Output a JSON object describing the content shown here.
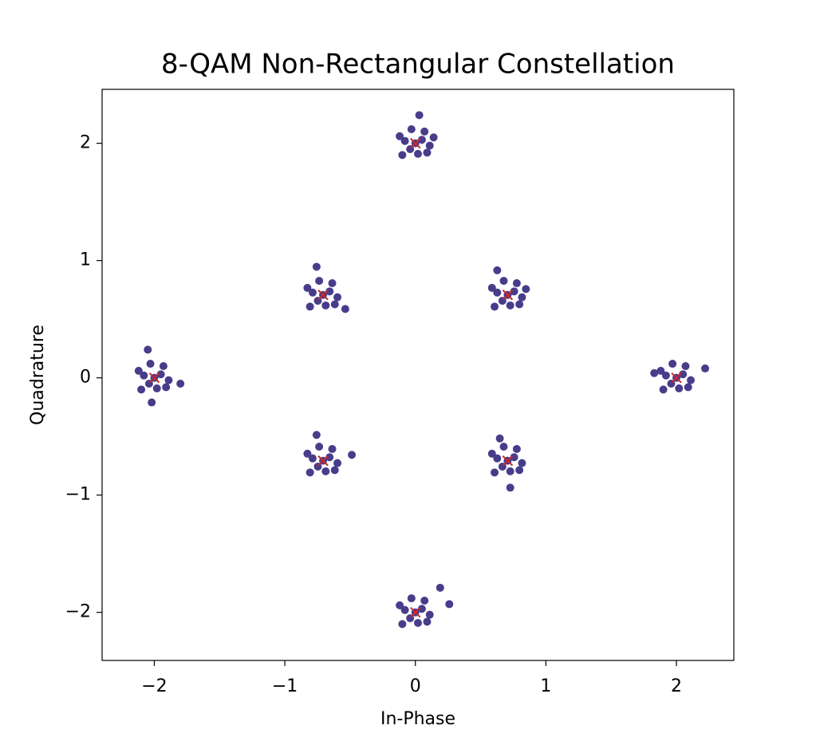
{
  "chart_data": {
    "type": "scatter",
    "title": "8-QAM Non-Rectangular Constellation",
    "x_label": "In-Phase",
    "y_label": "Quadrature",
    "xlim": [
      -2.4,
      2.44
    ],
    "ylim": [
      -2.41,
      2.46
    ],
    "xticks": [
      {
        "value": -2,
        "label": "−2"
      },
      {
        "value": -1,
        "label": "−1"
      },
      0,
      1,
      2
    ],
    "yticks": [
      {
        "value": -2,
        "label": "−2"
      },
      {
        "value": -1,
        "label": "−1"
      },
      0,
      1,
      2
    ],
    "grid": false,
    "series": [
      {
        "color": "#483d8b",
        "marker": "circle",
        "x": [
          -1.95,
          -2.08,
          -1.98,
          -2.04,
          -1.89,
          -2.12,
          -1.93,
          -2.0,
          -2.03,
          -1.91,
          -2.1,
          -1.8,
          -2.05,
          -2.02,
          0.05,
          -0.08,
          0.02,
          -0.04,
          0.11,
          -0.12,
          0.07,
          0.0,
          -0.03,
          0.09,
          -0.1,
          0.14,
          0.03,
          0.757,
          0.627,
          0.727,
          0.667,
          0.817,
          0.587,
          0.777,
          0.707,
          0.677,
          0.797,
          0.607,
          0.847,
          0.627,
          -0.657,
          -0.787,
          -0.687,
          -0.747,
          -0.597,
          -0.827,
          -0.637,
          -0.707,
          -0.737,
          -0.617,
          -0.807,
          -0.537,
          -0.757,
          -0.657,
          -0.787,
          -0.687,
          -0.747,
          -0.597,
          -0.827,
          -0.637,
          -0.707,
          -0.737,
          -0.617,
          -0.807,
          -0.487,
          -0.757,
          0.757,
          0.627,
          0.727,
          0.667,
          0.817,
          0.587,
          0.777,
          0.707,
          0.677,
          0.797,
          0.607,
          0.727,
          0.647,
          2.05,
          1.92,
          2.02,
          1.96,
          2.11,
          1.88,
          2.07,
          2.0,
          1.97,
          2.09,
          1.9,
          2.22,
          1.83,
          0.05,
          -0.08,
          0.02,
          -0.04,
          0.11,
          -0.12,
          0.07,
          0.0,
          -0.03,
          0.09,
          -0.1,
          0.19,
          0.26
        ],
        "values": [
          0.03,
          0.02,
          -0.09,
          -0.05,
          -0.02,
          0.06,
          0.1,
          0.0,
          0.12,
          -0.08,
          -0.1,
          -0.05,
          0.24,
          -0.21,
          2.03,
          2.02,
          1.91,
          1.95,
          1.98,
          2.06,
          2.1,
          2.0,
          2.12,
          1.92,
          1.9,
          2.05,
          2.24,
          0.737,
          0.727,
          0.617,
          0.657,
          0.687,
          0.767,
          0.807,
          0.707,
          0.827,
          0.627,
          0.607,
          0.757,
          0.917,
          0.737,
          0.727,
          0.617,
          0.657,
          0.687,
          0.767,
          0.807,
          0.707,
          0.827,
          0.627,
          0.607,
          0.587,
          0.947,
          -0.677,
          -0.687,
          -0.797,
          -0.757,
          -0.727,
          -0.647,
          -0.607,
          -0.707,
          -0.587,
          -0.787,
          -0.807,
          -0.657,
          -0.487,
          -0.677,
          -0.687,
          -0.797,
          -0.757,
          -0.727,
          -0.647,
          -0.607,
          -0.707,
          -0.587,
          -0.787,
          -0.807,
          -0.937,
          -0.517,
          0.03,
          0.02,
          -0.09,
          -0.05,
          -0.02,
          0.06,
          0.1,
          0.0,
          0.12,
          -0.08,
          -0.1,
          0.08,
          0.04,
          -1.97,
          -1.98,
          -2.09,
          -2.05,
          -2.02,
          -1.94,
          -1.9,
          -2.0,
          -1.88,
          -2.08,
          -2.1,
          -1.79,
          -1.93
        ]
      },
      {
        "color": "#c8282b",
        "marker": "x",
        "x": [
          -2,
          0,
          0.707,
          -0.707,
          -0.707,
          0.707,
          2,
          0
        ],
        "values": [
          0,
          2,
          0.707,
          0.707,
          -0.707,
          -0.707,
          0,
          -2
        ]
      }
    ]
  }
}
